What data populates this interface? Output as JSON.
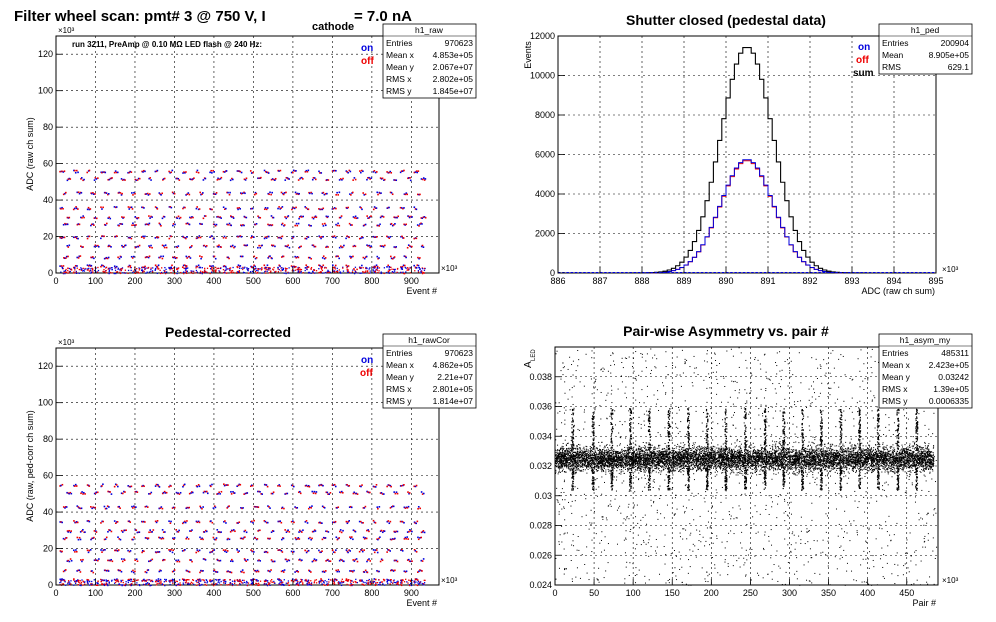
{
  "chart_data": [
    {
      "type": "scatter",
      "title": "Filter wheel scan: pmt#   3 @   750 V, I",
      "title_sub": "cathode",
      "title_tail": "= 7.0 nA",
      "note": "run 3211, PreAmp @ 0.10 MΩ  LED flash @  240 Hz:",
      "xlabel": "Event #",
      "ylabel": "ADC (raw ch sum)",
      "x_exponent": "×10³",
      "y_exponent": "×10³",
      "xlim": [
        0,
        970
      ],
      "ylim": [
        0,
        130
      ],
      "x_ticks": [
        0,
        100,
        200,
        300,
        400,
        500,
        600,
        700,
        800,
        900
      ],
      "y_ticks": [
        0,
        20,
        40,
        60,
        80,
        100,
        120
      ],
      "legend": [
        {
          "label": "on",
          "color": "#0000dd"
        },
        {
          "label": "off",
          "color": "#ee0000"
        }
      ],
      "stats": {
        "name": "h1_raw",
        "rows": [
          {
            "label": "Entries",
            "value": "970623"
          },
          {
            "label": "Mean x",
            "value": "4.853e+05"
          },
          {
            "label": "Mean y",
            "value": "2.067e+07"
          },
          {
            "label": "RMS x",
            "value": "2.802e+05"
          },
          {
            "label": "RMS y",
            "value": "1.845e+07"
          }
        ]
      },
      "series_levels": [
        4,
        9,
        15,
        20,
        27,
        31,
        36,
        44,
        52,
        56
      ]
    },
    {
      "type": "line",
      "title": "Shutter closed (pedestal data)",
      "xlabel": "ADC (raw ch sum)",
      "ylabel": "Events",
      "x_exponent": "×10³",
      "xlim": [
        886,
        895
      ],
      "ylim": [
        0,
        12000
      ],
      "x_ticks": [
        886,
        887,
        888,
        889,
        890,
        891,
        892,
        893,
        894,
        895
      ],
      "y_ticks": [
        0,
        2000,
        4000,
        6000,
        8000,
        10000,
        12000
      ],
      "legend": [
        {
          "label": "on",
          "color": "#0000dd"
        },
        {
          "label": "off",
          "color": "#ee0000"
        },
        {
          "label": "sum",
          "color": "#000000"
        }
      ],
      "stats": {
        "name": "h1_ped",
        "rows": [
          {
            "label": "Entries",
            "value": "200904"
          },
          {
            "label": "Mean",
            "value": "8.905e+05"
          },
          {
            "label": "RMS",
            "value": "629.1"
          }
        ]
      },
      "series": [
        {
          "name": "sum",
          "mean": 890.5,
          "sigma": 0.629,
          "peak": 11450
        },
        {
          "name": "on",
          "mean": 890.5,
          "sigma": 0.629,
          "peak": 5750
        },
        {
          "name": "off",
          "mean": 890.5,
          "sigma": 0.629,
          "peak": 5700
        }
      ]
    },
    {
      "type": "scatter",
      "title": "Pedestal-corrected",
      "xlabel": "Event #",
      "ylabel": "ADC (raw, ped-corr ch sum)",
      "x_exponent": "×10³",
      "y_exponent": "×10³",
      "xlim": [
        0,
        970
      ],
      "ylim": [
        0,
        130
      ],
      "x_ticks": [
        0,
        100,
        200,
        300,
        400,
        500,
        600,
        700,
        800,
        900
      ],
      "y_ticks": [
        0,
        20,
        40,
        60,
        80,
        100,
        120
      ],
      "legend": [
        {
          "label": "on",
          "color": "#0000dd"
        },
        {
          "label": "off",
          "color": "#ee0000"
        }
      ],
      "stats": {
        "name": "h1_rawCor",
        "rows": [
          {
            "label": "Entries",
            "value": "970623"
          },
          {
            "label": "Mean x",
            "value": "4.862e+05"
          },
          {
            "label": "Mean y",
            "value": "2.21e+07"
          },
          {
            "label": "RMS x",
            "value": "2.801e+05"
          },
          {
            "label": "RMS y",
            "value": "1.814e+07"
          }
        ]
      },
      "series_levels": [
        3,
        8,
        14,
        19,
        26,
        30,
        35,
        43,
        51,
        55
      ]
    },
    {
      "type": "scatter",
      "title": "Pair-wise Asymmetry vs. pair #",
      "xlabel": "Pair #",
      "ylabel": "A",
      "ylabel_sub": "LED",
      "x_exponent": "×10³",
      "xlim": [
        0,
        490
      ],
      "ylim": [
        0.024,
        0.04
      ],
      "x_ticks": [
        0,
        50,
        100,
        150,
        200,
        250,
        300,
        350,
        400,
        450
      ],
      "y_ticks": [
        0.024,
        0.026,
        0.028,
        0.03,
        0.032,
        0.034,
        0.036,
        0.038
      ],
      "y_tick_labels": [
        "0.024",
        "0.026",
        "0.028",
        "0.03",
        "0.032",
        "0.034",
        "0.036",
        "0.038"
      ],
      "stats": {
        "name": "h1_asym_my",
        "rows": [
          {
            "label": "Entries",
            "value": "485311"
          },
          {
            "label": "Mean x",
            "value": "2.423e+05"
          },
          {
            "label": "Mean y",
            "value": "0.03242"
          },
          {
            "label": "RMS x",
            "value": "1.39e+05"
          },
          {
            "label": "RMS y",
            "value": "0.0006335"
          }
        ]
      },
      "band_center": 0.0325,
      "band_halfwidth": 0.0007,
      "spike_positions": [
        22,
        48,
        72,
        96,
        120,
        145,
        170,
        194,
        218,
        243,
        268,
        292,
        316,
        340,
        365,
        389,
        413,
        438,
        462
      ]
    }
  ]
}
